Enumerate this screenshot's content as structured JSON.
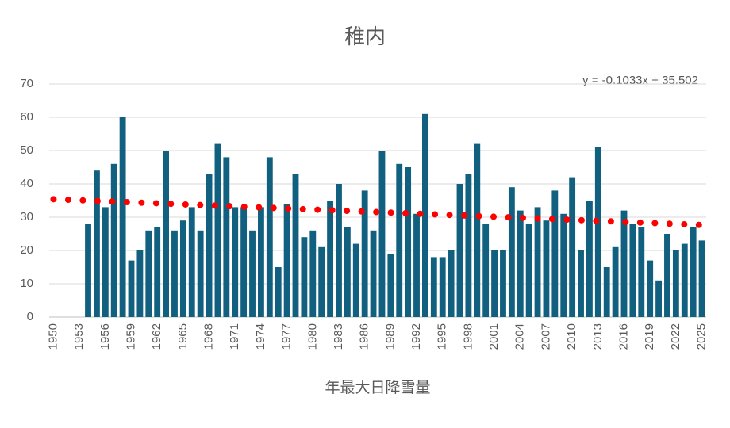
{
  "chart_data": {
    "type": "bar",
    "title": "稚内",
    "x_label": "年最大日降雪量",
    "categories": [
      "1950",
      null,
      null,
      "1953",
      null,
      null,
      "1956",
      null,
      null,
      "1959",
      null,
      null,
      "1962",
      null,
      null,
      "1965",
      null,
      null,
      "1968",
      null,
      null,
      "1971",
      null,
      null,
      "1974",
      null,
      null,
      "1977",
      null,
      null,
      "1980",
      null,
      null,
      "1983",
      null,
      null,
      "1986",
      null,
      null,
      "1989",
      null,
      null,
      "1992",
      null,
      null,
      "1995",
      null,
      null,
      "1998",
      null,
      null,
      "2001",
      null,
      null,
      "2004",
      null,
      null,
      "2007",
      null,
      null,
      "2010",
      null,
      null,
      "2013",
      null,
      null,
      "2016",
      null,
      null,
      "2019",
      null,
      null,
      "2022",
      null,
      null,
      "2025"
    ],
    "values": [
      null,
      null,
      null,
      null,
      28,
      44,
      33,
      46,
      60,
      17,
      20,
      26,
      27,
      50,
      26,
      29,
      33,
      26,
      43,
      52,
      48,
      33,
      33,
      26,
      33,
      48,
      15,
      34,
      43,
      24,
      26,
      21,
      35,
      40,
      27,
      22,
      38,
      26,
      50,
      19,
      46,
      45,
      31,
      61,
      18,
      18,
      20,
      40,
      43,
      52,
      28,
      20,
      20,
      39,
      32,
      28,
      33,
      29,
      38,
      31,
      42,
      20,
      35,
      51,
      15,
      21,
      32,
      28,
      27,
      17,
      11,
      25,
      20,
      22,
      27,
      23
    ],
    "color": "#11607f",
    "trendline": {
      "slope": -0.1033,
      "intercept": 35.502,
      "label": "y = -0.1033x + 35.502",
      "color": "#ff0000"
    },
    "ylim": [
      0,
      70
    ],
    "yticks": [
      0,
      10,
      20,
      30,
      40,
      50,
      60,
      70
    ],
    "grid": true
  }
}
